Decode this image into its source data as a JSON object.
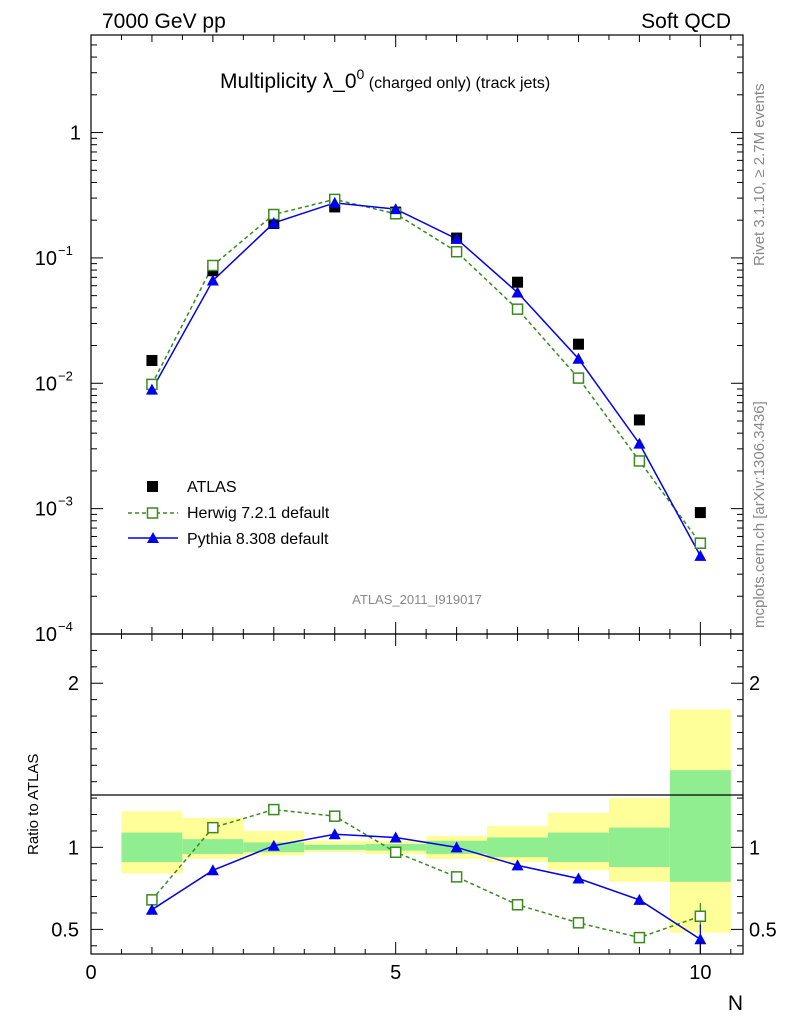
{
  "header": {
    "left": "7000 GeV pp",
    "right": "Soft QCD"
  },
  "side_labels": {
    "rivet": "Rivet 3.1.10, ≥ 2.7M events",
    "mcplots": "mcplots.cern.ch [arXiv:1306.3436]"
  },
  "colors": {
    "atlas": "#000000",
    "herwig": "#3a8a1e",
    "pythia": "#0000ee",
    "band_inner": "#90ee90",
    "band_outer": "#ffff99"
  },
  "chart_data": [
    {
      "type": "scatter",
      "panel": "main",
      "title_main": "Multiplicity λ_0",
      "title_sup": "0",
      "title_suffix": " (charged only) (track jets)",
      "watermark": "ATLAS_2011_I919017",
      "yscale": "log",
      "ylim": [
        0.0001,
        6
      ],
      "xlim": [
        0,
        10.7
      ],
      "y_ticks": [
        {
          "value": 1,
          "label": "1"
        },
        {
          "value": 0.1,
          "base": "10",
          "exp": "−1"
        },
        {
          "value": 0.01,
          "base": "10",
          "exp": "−2"
        },
        {
          "value": 0.001,
          "base": "10",
          "exp": "−3"
        },
        {
          "value": 0.0001,
          "base": "10",
          "exp": "−4"
        }
      ],
      "legend_position": "bottom-left",
      "x": [
        1,
        2,
        3,
        4,
        5,
        6,
        7,
        8,
        9,
        10
      ],
      "series": [
        {
          "name": "ATLAS",
          "marker": "filled-square",
          "values": [
            0.0152,
            0.079,
            0.188,
            0.255,
            0.232,
            0.144,
            0.064,
            0.0205,
            0.0051,
            0.00093
          ]
        },
        {
          "name": "Herwig 7.2.1 default",
          "marker": "open-square",
          "line": "dashed",
          "values": [
            0.0098,
            0.087,
            0.222,
            0.293,
            0.225,
            0.112,
            0.039,
            0.011,
            0.0024,
            0.00053
          ]
        },
        {
          "name": "Pythia 8.308 default",
          "marker": "filled-triangle",
          "line": "solid",
          "values": [
            0.0089,
            0.066,
            0.19,
            0.275,
            0.245,
            0.142,
            0.053,
            0.0157,
            0.0033,
            0.00042
          ]
        }
      ]
    },
    {
      "type": "scatter",
      "panel": "ratio",
      "ylabel": "Ratio to ATLAS",
      "xlabel": "N",
      "xlim": [
        0,
        10.7
      ],
      "ylim": [
        0.35,
        2.3
      ],
      "reference_line": 1,
      "x_ticks": [
        {
          "value": 0,
          "label": "0"
        },
        {
          "value": 5,
          "label": "5"
        },
        {
          "value": 10,
          "label": "10"
        }
      ],
      "y_ticks": [
        {
          "value": 2,
          "label": "2"
        },
        {
          "value": 1,
          "label": "1"
        },
        {
          "value": 0.5,
          "label": "0.5"
        }
      ],
      "x": [
        1,
        2,
        3,
        4,
        5,
        6,
        7,
        8,
        9,
        10
      ],
      "bands": {
        "edges": [
          0.5,
          1.5,
          2.5,
          3.5,
          4.5,
          5.5,
          6.5,
          7.5,
          8.5,
          9.5,
          10.5
        ],
        "inner_low": [
          0.91,
          0.96,
          0.97,
          0.985,
          0.98,
          0.96,
          0.94,
          0.91,
          0.88,
          0.79
        ],
        "inner_high": [
          1.09,
          1.05,
          1.03,
          1.015,
          1.02,
          1.04,
          1.06,
          1.09,
          1.12,
          1.47
        ],
        "outer_low": [
          0.84,
          0.93,
          0.95,
          0.97,
          0.96,
          0.93,
          0.91,
          0.86,
          0.79,
          0.48
        ],
        "outer_high": [
          1.22,
          1.18,
          1.1,
          1.04,
          1.04,
          1.07,
          1.13,
          1.21,
          1.3,
          1.84
        ]
      },
      "series": [
        {
          "name": "Herwig 7.2.1 default",
          "marker": "open-square",
          "line": "dashed",
          "values": [
            0.68,
            1.12,
            1.23,
            1.19,
            0.97,
            0.82,
            0.65,
            0.54,
            0.45,
            0.58
          ],
          "errors": [
            0.01,
            0.01,
            0.01,
            0.01,
            0.01,
            0.01,
            0.01,
            0.015,
            0.03,
            0.08
          ]
        },
        {
          "name": "Pythia 8.308 default",
          "marker": "filled-triangle",
          "line": "solid",
          "values": [
            0.62,
            0.86,
            1.01,
            1.08,
            1.06,
            1.0,
            0.89,
            0.81,
            0.68,
            0.44
          ],
          "errors": [
            0.01,
            0.01,
            0.01,
            0.01,
            0.01,
            0.01,
            0.01,
            0.015,
            0.03,
            0.09
          ]
        }
      ]
    }
  ]
}
